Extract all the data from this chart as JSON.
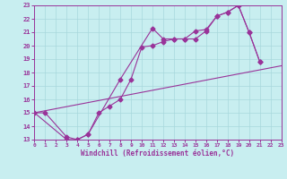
{
  "xlabel": "Windchill (Refroidissement éolien,°C)",
  "bg_color": "#c8eef0",
  "grid_color": "#a8d8dc",
  "line_color": "#993399",
  "xlim": [
    0,
    23
  ],
  "ylim": [
    13,
    23
  ],
  "xticks": [
    0,
    1,
    2,
    3,
    4,
    5,
    6,
    7,
    8,
    9,
    10,
    11,
    12,
    13,
    14,
    15,
    16,
    17,
    18,
    19,
    20,
    21,
    22,
    23
  ],
  "yticks": [
    13,
    14,
    15,
    16,
    17,
    18,
    19,
    20,
    21,
    22,
    23
  ],
  "curves": [
    {
      "x": [
        0,
        1,
        3,
        4,
        5,
        8,
        11,
        12,
        13,
        14,
        15,
        16,
        17,
        18,
        19,
        20,
        21
      ],
      "y": [
        15.0,
        15.0,
        13.2,
        13.0,
        13.4,
        17.5,
        21.3,
        20.5,
        20.5,
        20.5,
        21.1,
        21.2,
        22.2,
        22.5,
        23.0,
        21.0,
        18.8
      ]
    },
    {
      "x": [
        0,
        3,
        4,
        5,
        6,
        7,
        8,
        9,
        10,
        11,
        12,
        13,
        14,
        15,
        16,
        17,
        18,
        19,
        20,
        21
      ],
      "y": [
        15.0,
        13.0,
        13.0,
        13.4,
        15.0,
        15.5,
        16.0,
        17.5,
        19.9,
        20.0,
        20.3,
        20.5,
        20.5,
        20.5,
        21.1,
        22.2,
        22.5,
        23.0,
        21.0,
        18.8
      ]
    },
    {
      "x": [
        0,
        23
      ],
      "y": [
        15.0,
        18.5
      ]
    }
  ]
}
